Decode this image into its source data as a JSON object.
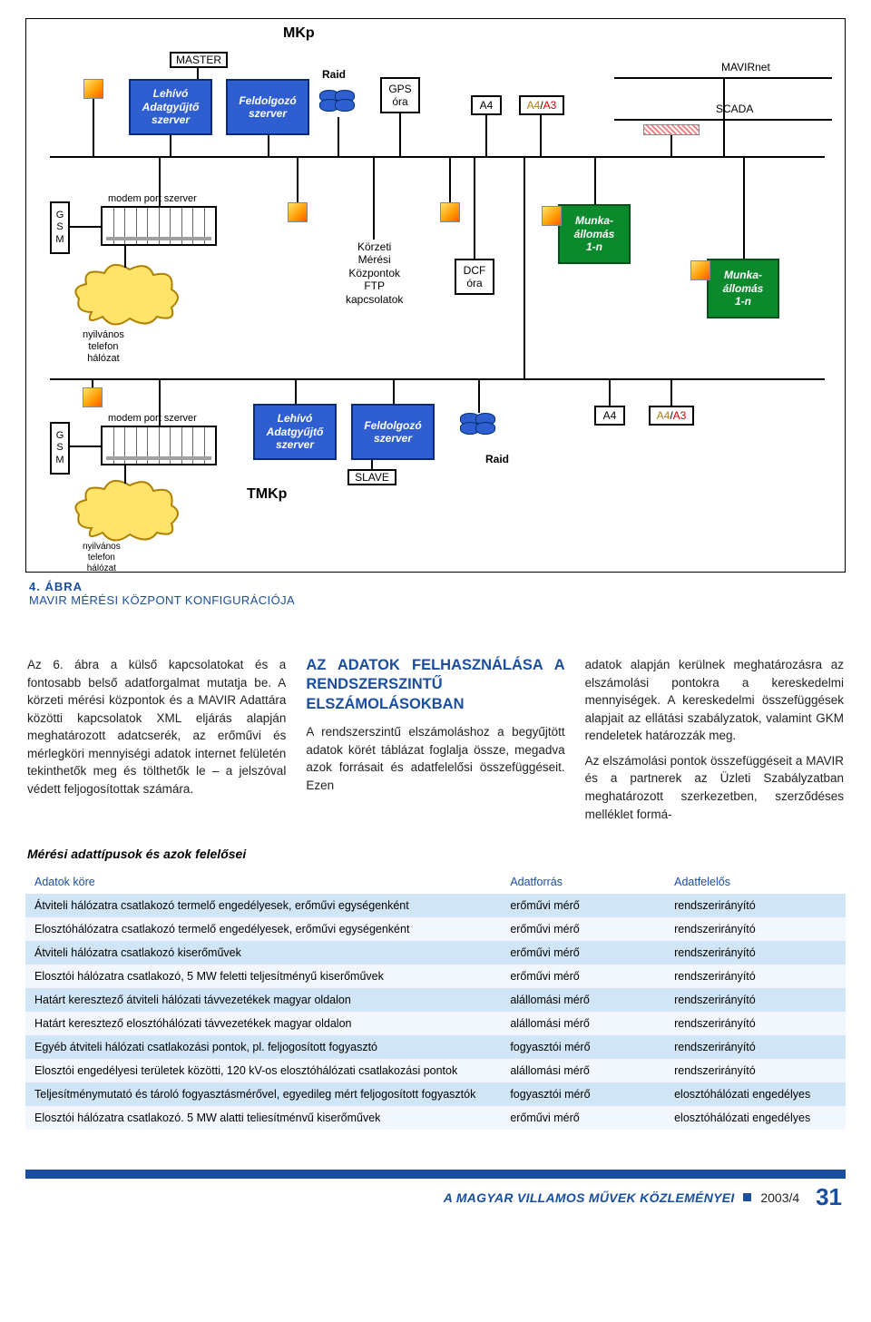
{
  "diagram": {
    "mkp_label": "MKp",
    "tmkp_label": "TMKp",
    "master_label": "MASTER",
    "slave_label": "SLAVE",
    "raid_label": "Raid",
    "raid_label2": "Raid",
    "gps_label": "GPS\nóra",
    "dcf_label": "DCF\nóra",
    "a4_label": "A4",
    "a4a3_label": "A4/A3",
    "a4_label2": "A4",
    "a4a3_label2": "A4/A3",
    "mavirnet_label": "MAVIRnet",
    "scada_label": "SCADA",
    "lehivo_label": "Lehívó\nAdatgyűjtő\nszerver",
    "feldolgozo_label": "Feldolgozó\nszerver",
    "lehivo_label2": "Lehívó\nAdatgyűjtő\nszerver",
    "feldolgozo_label2": "Feldolgozó\nszerver",
    "munka_label": "Munka-\nállomás\n1-n",
    "munka_label2": "Munka-\nállomás\n1-n",
    "kmk_ftp_label": "Körzeti\nMérési\nKözpontok\nFTP\nkapcsolatok",
    "modem_label": "modem port szerver",
    "modem_label2": "modem port szerver",
    "gsm_label": "G\nS\nM",
    "gsm_label2": "G\nS\nM",
    "telefon_label": "nyilvános\ntelefon\nhálózat",
    "telefon_label2": "nyilvános\ntelefon\nhálózat",
    "colors": {
      "blue_box": "#2f5ed0",
      "blue_border": "#0b2a7a",
      "green_box": "#0a8a2c",
      "green_border": "#064f1a",
      "cloud_fill": "#ffe36b",
      "cloud_stroke": "#b08000",
      "accent": "#1a4ea0"
    }
  },
  "caption": {
    "num": "4. ÁBRA",
    "txt": "MAVIR MÉRÉSI KÖZPONT KONFIGURÁCIÓJA"
  },
  "col1": {
    "p1": "Az 6. ábra a külső kapcsolatokat és a fontosabb belső adatforgalmat mutatja be. A körzeti mérési központok és a MAVIR Adattára közötti kapcsolatok XML eljárás alapján meghatározott adatcserék, az erőművi és mérlegköri mennyiségi adatok internet felületén tekinthetők meg és tölthetők le – a jelszóval védett feljogosítottak számára."
  },
  "col2": {
    "heading": "AZ ADATOK FELHASZNÁLÁSA A RENDSZERSZINTŰ ELSZÁMOLÁSOKBAN",
    "p1": "A rendszerszintű elszámoláshoz a begyűjtött adatok körét táblázat foglalja össze, megadva azok forrásait és adatfelelősi összefüggéseit. Ezen"
  },
  "col3": {
    "p1": "adatok alapján kerülnek meghatározásra az elszámolási pontokra a kereskedelmi mennyiségek. A kereskedelmi összefüggések alapjait az ellátási szabályzatok, valamint GKM rendeletek határozzák meg.",
    "p2": "Az elszámolási pontok összefüggéseit a MAVIR és a partnerek az Üzleti Szabályzatban meghatározott szerkezetben, szerződéses melléklet formá-"
  },
  "table": {
    "title": "Mérési adattípusok és azok felelősei",
    "head": [
      "Adatok köre",
      "Adatforrás",
      "Adatfelelős"
    ],
    "rows": [
      [
        "Átviteli hálózatra csatlakozó termelő engedélyesek, erőművi egységenként",
        "erőművi mérő",
        "rendszerirányító"
      ],
      [
        "Elosztóhálózatra csatlakozó termelő engedélyesek, erőművi egységenként",
        "erőművi mérő",
        "rendszerirányító"
      ],
      [
        "Átviteli hálózatra csatlakozó kiserőművek",
        "erőművi mérő",
        "rendszerirányító"
      ],
      [
        "Elosztói hálózatra csatlakozó, 5 MW feletti teljesítményű kiserőművek",
        "erőművi mérő",
        "rendszerirányító"
      ],
      [
        "Határt keresztező átviteli hálózati távvezetékek magyar oldalon",
        "alállomási mérő",
        "rendszerirányító"
      ],
      [
        "Határt keresztező elosztóhálózati távvezetékek magyar oldalon",
        "alállomási mérő",
        "rendszerirányító"
      ],
      [
        "Egyéb átviteli hálózati csatlakozási pontok, pl. feljogosított fogyasztó",
        "fogyasztói mérő",
        "rendszerirányító"
      ],
      [
        "Elosztói engedélyesi területek közötti, 120 kV-os elosztóhálózati csatlakozási pontok",
        "alállomási mérő",
        "rendszerirányító"
      ],
      [
        "Teljesítménymutató és tároló fogyasztásmérővel, egyedileg mért feljogosított fogyasztók",
        "fogyasztói mérő",
        "elosztóhálózati engedélyes"
      ],
      [
        "Elosztói hálózatra csatlakozó. 5 MW alatti teliesítménvű kiserőművek",
        "erőművi mérő",
        "elosztóhálózati engedélyes"
      ]
    ]
  },
  "footer": {
    "title": "A MAGYAR VILLAMOS MŰVEK KÖZLEMÉNYEI",
    "issue": "2003/4",
    "page": "31"
  }
}
